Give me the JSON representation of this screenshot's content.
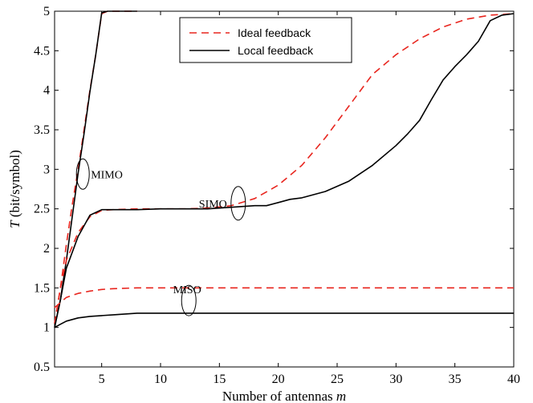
{
  "chart_data": {
    "type": "line",
    "xlabel": "Number of antennas m",
    "xlabel_parts": {
      "text": "Number of antennas ",
      "var": "m"
    },
    "ylabel": "T (bit/symbol)",
    "ylabel_parts": {
      "var": "T",
      "text": " (bit/symbol)"
    },
    "xlim": [
      1,
      40
    ],
    "ylim": [
      0.5,
      5
    ],
    "xticks": [
      5,
      10,
      15,
      20,
      25,
      30,
      35,
      40
    ],
    "yticks": [
      0.5,
      1,
      1.5,
      2,
      2.5,
      3,
      3.5,
      4,
      4.5,
      5
    ],
    "ytick_labels": [
      "0.5",
      "1",
      "1.5",
      "2",
      "2.5",
      "3",
      "3.5",
      "4",
      "4.5",
      "5"
    ],
    "grid": false,
    "legend": {
      "placement": "top-center",
      "entries": [
        {
          "label": "Ideal feedback",
          "color": "#e8251e",
          "dash": "dashed"
        },
        {
          "label": "Local feedback",
          "color": "#000000",
          "dash": "solid"
        }
      ]
    },
    "annotations": [
      {
        "text": "MIMO",
        "x": 3.4,
        "y": 2.94
      },
      {
        "text": "SIMO",
        "x": 16.6,
        "y": 2.57
      },
      {
        "text": "MISO",
        "x": 12.4,
        "y": 1.34
      }
    ],
    "series": [
      {
        "group": "MIMO",
        "name": "Ideal feedback",
        "color": "#e8251e",
        "dash": "dashed",
        "x": [
          1,
          1.5,
          2,
          2.5,
          3,
          3.5,
          4,
          4.5,
          5,
          5.5,
          6,
          8
        ],
        "y": [
          1.05,
          1.5,
          2.05,
          2.55,
          3.0,
          3.5,
          4.0,
          4.45,
          4.97,
          5.0,
          5.0,
          5.0
        ]
      },
      {
        "group": "MIMO",
        "name": "Local feedback",
        "color": "#000000",
        "dash": "solid",
        "x": [
          1,
          1.5,
          2,
          2.5,
          3,
          3.5,
          4,
          4.5,
          5,
          5.5,
          6,
          8
        ],
        "y": [
          1.0,
          1.35,
          1.85,
          2.4,
          2.95,
          3.45,
          3.98,
          4.45,
          4.98,
          5.0,
          5.0,
          5.0
        ]
      },
      {
        "group": "SIMO",
        "name": "Ideal feedback",
        "color": "#e8251e",
        "dash": "dashed",
        "x": [
          1,
          1.5,
          2,
          3,
          4,
          5,
          6,
          8,
          10,
          12,
          14,
          16,
          18,
          20,
          22,
          24,
          26,
          28,
          30,
          32,
          34,
          36,
          38,
          40
        ],
        "y": [
          1.05,
          1.5,
          1.85,
          2.2,
          2.4,
          2.48,
          2.49,
          2.5,
          2.5,
          2.5,
          2.51,
          2.54,
          2.63,
          2.8,
          3.05,
          3.4,
          3.8,
          4.2,
          4.45,
          4.65,
          4.8,
          4.9,
          4.95,
          4.97
        ]
      },
      {
        "group": "SIMO",
        "name": "Local feedback",
        "color": "#000000",
        "dash": "solid",
        "x": [
          1,
          1.5,
          2,
          3,
          4,
          5,
          6,
          8,
          10,
          12,
          14,
          16,
          18,
          19,
          20,
          21,
          22,
          24,
          26,
          28,
          30,
          31,
          32,
          33,
          34,
          35,
          36,
          37,
          38,
          39,
          40
        ],
        "y": [
          1.0,
          1.35,
          1.75,
          2.15,
          2.42,
          2.49,
          2.49,
          2.49,
          2.5,
          2.5,
          2.5,
          2.52,
          2.54,
          2.54,
          2.58,
          2.62,
          2.64,
          2.72,
          2.85,
          3.05,
          3.3,
          3.45,
          3.62,
          3.88,
          4.13,
          4.3,
          4.45,
          4.62,
          4.88,
          4.95,
          4.97
        ]
      },
      {
        "group": "MISO",
        "name": "Ideal feedback",
        "color": "#e8251e",
        "dash": "dashed",
        "x": [
          1,
          2,
          3,
          4,
          5,
          6,
          8,
          10,
          15,
          20,
          25,
          30,
          35,
          40
        ],
        "y": [
          1.25,
          1.38,
          1.43,
          1.46,
          1.48,
          1.49,
          1.5,
          1.5,
          1.5,
          1.5,
          1.5,
          1.5,
          1.5,
          1.5
        ]
      },
      {
        "group": "MISO",
        "name": "Local feedback",
        "color": "#000000",
        "dash": "solid",
        "x": [
          1,
          1.5,
          2,
          3,
          4,
          5,
          6,
          8,
          10,
          15,
          20,
          25,
          30,
          35,
          40
        ],
        "y": [
          1.0,
          1.04,
          1.08,
          1.12,
          1.14,
          1.15,
          1.16,
          1.18,
          1.18,
          1.18,
          1.18,
          1.18,
          1.18,
          1.18,
          1.18
        ]
      }
    ]
  }
}
